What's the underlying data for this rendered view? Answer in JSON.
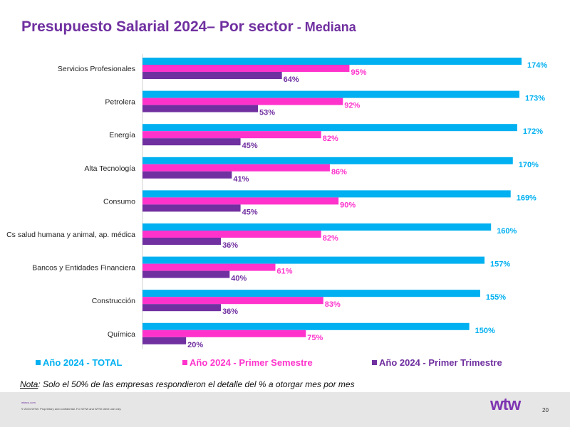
{
  "title": {
    "main": "Presupuesto Salarial 2024– Por sector",
    "sub": " - Mediana"
  },
  "chart_data": {
    "type": "bar",
    "orientation": "horizontal",
    "categories": [
      "Servicios Profesionales",
      "Petrolera",
      "Energía",
      "Alta Tecnología",
      "Consumo",
      "Cs salud humana y animal, ap. médica",
      "Bancos y Entidades Financiera",
      "Construcción",
      "Química"
    ],
    "series": [
      {
        "name": "Año 2024 - TOTAL",
        "color": "#00b0f0",
        "values": [
          174,
          173,
          172,
          170,
          169,
          160,
          157,
          155,
          150
        ]
      },
      {
        "name": "Año 2024 - Primer Semestre",
        "color": "#ff33cc",
        "values": [
          95,
          92,
          82,
          86,
          90,
          82,
          61,
          83,
          75
        ]
      },
      {
        "name": "Año 2024 - Primer Trimestre",
        "color": "#7030a0",
        "values": [
          64,
          53,
          45,
          41,
          45,
          36,
          40,
          36,
          20
        ]
      }
    ],
    "value_suffix": "%",
    "xlim": [
      0,
      180
    ],
    "grid": false,
    "legend_position": "bottom"
  },
  "note": {
    "label": "Nota",
    "text": ": Solo el 50% de las empresas respondieron el detalle del % a otorgar mes por mes"
  },
  "footer": {
    "site": "wtwco.com",
    "copyright": "© 2024 WTW. Proprietary and confidential. For WTW and WTW client use only.",
    "logo": "wtw",
    "page": "20"
  }
}
